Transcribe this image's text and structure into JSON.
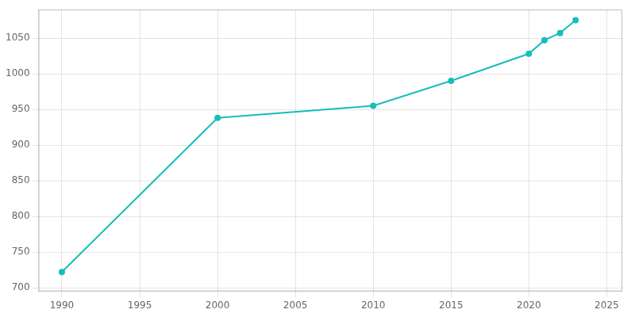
{
  "chart_data": {
    "type": "line",
    "x": [
      1990,
      2000,
      2010,
      2015,
      2020,
      2021,
      2022,
      2023
    ],
    "values": [
      722,
      938,
      955,
      990,
      1028,
      1047,
      1057,
      1075
    ],
    "color": "#17BEBB",
    "marker": "circle",
    "xlim": [
      1988.5,
      2026
    ],
    "xticks": [
      1990,
      1995,
      2000,
      2005,
      2010,
      2015,
      2020,
      2025
    ],
    "ylim": [
      695,
      1090
    ],
    "yticks": [
      700,
      750,
      800,
      850,
      900,
      950,
      1000,
      1050
    ],
    "grid": true
  }
}
